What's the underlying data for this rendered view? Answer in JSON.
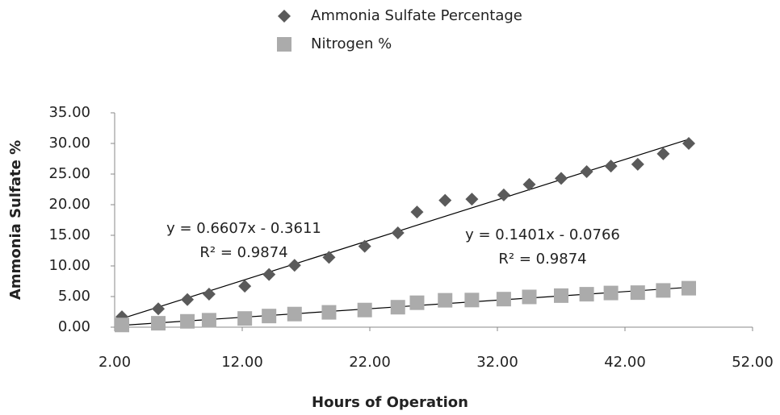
{
  "chart_data": {
    "type": "scatter",
    "x_label": "Hours of Operation",
    "y_label": "Ammonia Sulfate %",
    "x": [
      2.57,
      5.42,
      7.7,
      9.4,
      12.2,
      14.1,
      16.1,
      18.8,
      21.6,
      24.2,
      25.7,
      27.9,
      30.0,
      32.5,
      34.5,
      37.0,
      39.0,
      40.9,
      43.0,
      45.0,
      47.0
    ],
    "series": [
      {
        "name": "Ammonia Sulfate Percentage",
        "color": "#5a5a5a",
        "marker": "diamond",
        "values": [
          1.7,
          3.0,
          4.5,
          5.4,
          6.7,
          8.6,
          10.1,
          11.4,
          13.2,
          15.4,
          18.8,
          20.7,
          20.9,
          21.6,
          23.3,
          24.3,
          25.4,
          26.3,
          26.6,
          28.3,
          30.0
        ]
      },
      {
        "name": "Nitrogen %",
        "color": "#ababab",
        "marker": "square",
        "values": [
          0.36,
          0.64,
          0.95,
          1.14,
          1.42,
          1.82,
          2.14,
          2.42,
          2.8,
          3.26,
          3.99,
          4.39,
          4.43,
          4.58,
          4.94,
          5.15,
          5.38,
          5.58,
          5.64,
          6.0,
          6.36
        ]
      }
    ],
    "annotations": [
      "y = 0.6607x - 0.3611",
      "R² = 0.9874",
      "y = 0.1401x - 0.0766",
      "R² = 0.9874"
    ],
    "trendline": true,
    "xlim": [
      2,
      52
    ],
    "xticks": [
      {
        "value": 2,
        "label": "2.00"
      },
      {
        "value": 12,
        "label": "12.00"
      },
      {
        "value": 22,
        "label": "22.00"
      },
      {
        "value": 32,
        "label": "32.00"
      },
      {
        "value": 42,
        "label": "42.00"
      },
      {
        "value": 52,
        "label": "52.00"
      }
    ],
    "ylim": [
      0,
      35
    ],
    "yticks": [
      {
        "value": 0,
        "label": "0.00"
      },
      {
        "value": 5,
        "label": "5.00"
      },
      {
        "value": 10,
        "label": "10.00"
      },
      {
        "value": 15,
        "label": "15.00"
      },
      {
        "value": 20,
        "label": "20.00"
      },
      {
        "value": 25,
        "label": "25.00"
      },
      {
        "value": 30,
        "label": "30.00"
      },
      {
        "value": 35,
        "label": "35.00"
      }
    ],
    "grid": false
  }
}
